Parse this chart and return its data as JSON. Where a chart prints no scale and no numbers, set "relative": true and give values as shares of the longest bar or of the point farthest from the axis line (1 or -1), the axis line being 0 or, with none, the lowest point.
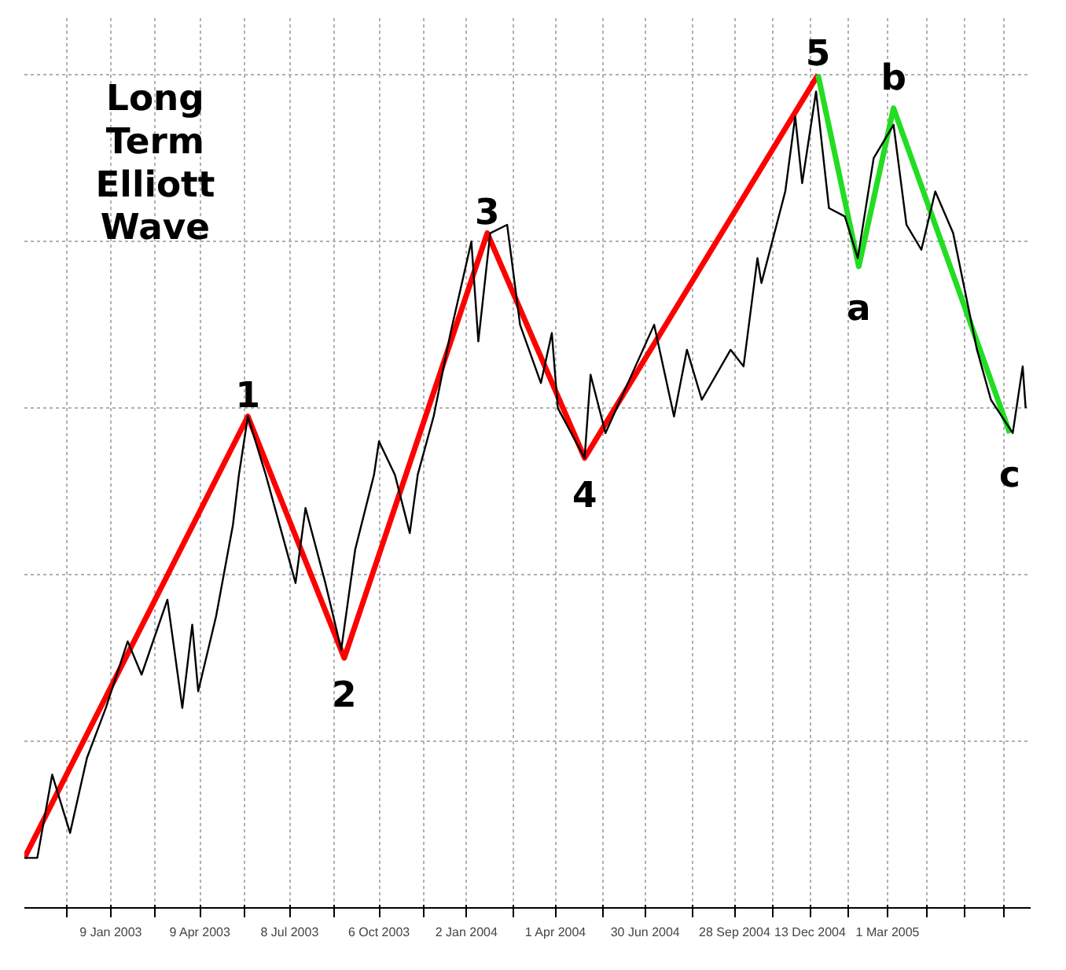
{
  "chart_data": {
    "type": "line",
    "title": "Long Term Elliott Wave",
    "relative": true,
    "grid": true,
    "marker": "none",
    "line_style": "solid",
    "xlim": [
      "2002-10-14",
      "2005-07-23"
    ],
    "xticks": [
      {
        "value": "2002-11-26",
        "label": null
      },
      {
        "value": "2003-01-09",
        "label": "9 Jan 2003"
      },
      {
        "value": "2003-02-23",
        "label": null
      },
      {
        "value": "2003-04-09",
        "label": "9 Apr 2003"
      },
      {
        "value": "2003-05-24",
        "label": null
      },
      {
        "value": "2003-07-08",
        "label": "8 Jul 2003"
      },
      {
        "value": "2003-08-22",
        "label": null
      },
      {
        "value": "2003-10-06",
        "label": "6 Oct 2003"
      },
      {
        "value": "2003-11-20",
        "label": null
      },
      {
        "value": "2004-01-02",
        "label": "2 Jan 2004"
      },
      {
        "value": "2004-02-18",
        "label": null
      },
      {
        "value": "2004-04-01",
        "label": "1 Apr 2004"
      },
      {
        "value": "2004-05-18",
        "label": null
      },
      {
        "value": "2004-06-30",
        "label": "30 Jun 2004"
      },
      {
        "value": "2004-08-16",
        "label": null
      },
      {
        "value": "2004-09-28",
        "label": "28 Sep 2004"
      },
      {
        "value": "2004-11-05",
        "label": null
      },
      {
        "value": "2004-12-13",
        "label": "13 Dec 2004"
      },
      {
        "value": "2005-01-21",
        "label": null
      },
      {
        "value": "2005-03-01",
        "label": "1 Mar 2005"
      },
      {
        "value": "2005-04-09",
        "label": null
      },
      {
        "value": "2005-05-18",
        "label": null
      },
      {
        "value": "2005-06-26",
        "label": null
      }
    ],
    "series": [
      {
        "color": "#000000",
        "x": [
          "2002-10-14",
          "2002-10-27",
          "2002-11-11",
          "2002-11-29",
          "2002-12-16",
          "2003-01-04",
          "2003-01-26",
          "2003-02-09",
          "2003-03-07",
          "2003-03-22",
          "2003-04-01",
          "2003-04-07",
          "2003-04-25",
          "2003-05-12",
          "2003-05-18",
          "2003-05-27",
          "2003-06-14",
          "2003-07-14",
          "2003-07-24",
          "2003-08-13",
          "2003-08-29",
          "2003-09-12",
          "2003-10-01",
          "2003-10-06",
          "2003-10-22",
          "2003-11-06",
          "2003-11-14",
          "2003-11-30",
          "2003-12-17",
          "2004-01-07",
          "2004-01-14",
          "2004-01-26",
          "2004-02-12",
          "2004-02-25",
          "2004-03-17",
          "2004-03-28",
          "2004-04-03",
          "2004-04-30",
          "2004-05-06",
          "2004-05-21",
          "2004-07-09",
          "2004-07-29",
          "2004-08-11",
          "2004-08-26",
          "2004-09-24",
          "2004-10-07",
          "2004-10-21",
          "2004-10-25",
          "2004-11-18",
          "2004-11-28",
          "2004-12-05",
          "2004-12-19",
          "2005-01-01",
          "2005-01-17",
          "2005-01-30",
          "2005-02-15",
          "2005-03-07",
          "2005-03-20",
          "2005-04-04",
          "2005-04-18",
          "2005-05-06",
          "2005-05-30",
          "2005-06-13",
          "2005-07-05",
          "2005-07-15",
          "2005-07-18"
        ],
        "values": [
          0.06,
          0.06,
          0.16,
          0.09,
          0.18,
          0.24,
          0.32,
          0.28,
          0.37,
          0.24,
          0.34,
          0.26,
          0.35,
          0.46,
          0.52,
          0.59,
          0.52,
          0.39,
          0.48,
          0.39,
          0.31,
          0.43,
          0.52,
          0.56,
          0.52,
          0.45,
          0.52,
          0.59,
          0.69,
          0.8,
          0.68,
          0.81,
          0.82,
          0.7,
          0.63,
          0.69,
          0.6,
          0.54,
          0.64,
          0.57,
          0.7,
          0.59,
          0.67,
          0.61,
          0.67,
          0.65,
          0.78,
          0.75,
          0.86,
          0.95,
          0.87,
          0.98,
          0.84,
          0.83,
          0.78,
          0.9,
          0.94,
          0.82,
          0.79,
          0.86,
          0.81,
          0.67,
          0.61,
          0.57,
          0.65,
          0.6
        ]
      },
      {
        "color": "#ff0000",
        "x": [
          "2002-10-14",
          "2003-05-27",
          "2003-09-01",
          "2004-01-23",
          "2004-04-30",
          "2004-12-21"
        ],
        "values": [
          0.06,
          0.59,
          0.3,
          0.81,
          0.54,
          1.0
        ]
      },
      {
        "color": "#22dd22",
        "x": [
          "2004-12-21",
          "2005-01-31",
          "2005-03-07",
          "2005-07-02"
        ],
        "values": [
          1.0,
          0.77,
          0.96,
          0.57
        ]
      }
    ],
    "annotations": [
      {
        "text": "1",
        "x": "2003-05-27",
        "y": 0.59
      },
      {
        "text": "2",
        "x": "2003-09-01",
        "y": 0.3
      },
      {
        "text": "3",
        "x": "2004-01-23",
        "y": 0.81
      },
      {
        "text": "4",
        "x": "2004-04-30",
        "y": 0.54
      },
      {
        "text": "5",
        "x": "2004-12-21",
        "y": 1.0
      },
      {
        "text": "a",
        "x": "2005-01-31",
        "y": 0.77
      },
      {
        "text": "b",
        "x": "2005-03-07",
        "y": 0.96
      },
      {
        "text": "c",
        "x": "2005-07-02",
        "y": 0.57
      }
    ]
  }
}
